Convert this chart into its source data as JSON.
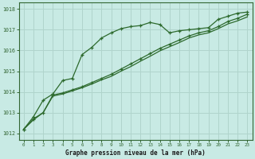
{
  "title": "Graphe pression niveau de la mer (hPa)",
  "bg_color": "#c8eae4",
  "grid_color": "#b0d4cc",
  "line_color": "#2d6a2d",
  "x_ticks": [
    0,
    1,
    2,
    3,
    4,
    5,
    6,
    7,
    8,
    9,
    10,
    11,
    12,
    13,
    14,
    15,
    16,
    17,
    18,
    19,
    20,
    21,
    22,
    23
  ],
  "y_ticks": [
    1012,
    1013,
    1014,
    1015,
    1016,
    1017,
    1018
  ],
  "ylim": [
    1011.7,
    1018.3
  ],
  "xlim": [
    -0.5,
    23.5
  ],
  "series1": [
    1012.2,
    1012.8,
    1013.6,
    1013.9,
    1014.55,
    1014.65,
    1015.8,
    1016.15,
    1016.6,
    1016.85,
    1017.05,
    1017.15,
    1017.2,
    1017.35,
    1017.25,
    1016.85,
    1016.95,
    1017.0,
    1017.05,
    1017.1,
    1017.5,
    1017.65,
    1017.8,
    1017.85
  ],
  "series2": [
    1012.2,
    1012.7,
    1013.0,
    1013.85,
    1013.95,
    1014.1,
    1014.25,
    1014.45,
    1014.65,
    1014.85,
    1015.1,
    1015.35,
    1015.6,
    1015.85,
    1016.1,
    1016.3,
    1016.5,
    1016.7,
    1016.85,
    1016.95,
    1017.15,
    1017.4,
    1017.55,
    1017.75
  ],
  "series3": [
    1012.2,
    1012.65,
    1013.0,
    1013.8,
    1013.9,
    1014.05,
    1014.2,
    1014.38,
    1014.58,
    1014.75,
    1015.0,
    1015.22,
    1015.48,
    1015.72,
    1015.98,
    1016.18,
    1016.38,
    1016.6,
    1016.75,
    1016.85,
    1017.05,
    1017.28,
    1017.43,
    1017.62
  ]
}
